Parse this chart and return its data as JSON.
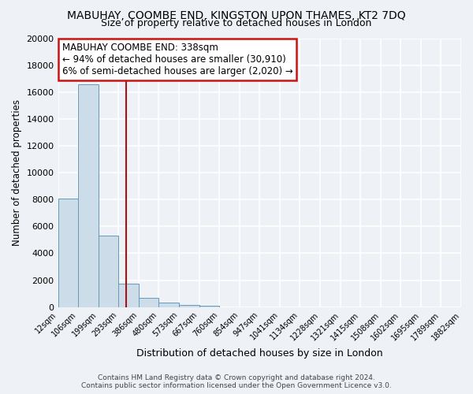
{
  "title": "MABUHAY, COOMBE END, KINGSTON UPON THAMES, KT2 7DQ",
  "subtitle": "Size of property relative to detached houses in London",
  "xlabel": "Distribution of detached houses by size in London",
  "ylabel": "Number of detached properties",
  "bar_values": [
    8100,
    16600,
    5300,
    1750,
    650,
    300,
    150,
    100,
    0,
    0,
    0,
    0,
    0,
    0,
    0,
    0,
    0,
    0,
    0,
    0
  ],
  "bin_labels": [
    "12sqm",
    "106sqm",
    "199sqm",
    "293sqm",
    "386sqm",
    "480sqm",
    "573sqm",
    "667sqm",
    "760sqm",
    "854sqm",
    "947sqm",
    "1041sqm",
    "1134sqm",
    "1228sqm",
    "1321sqm",
    "1415sqm",
    "1508sqm",
    "1602sqm",
    "1695sqm",
    "1789sqm",
    "1882sqm"
  ],
  "bar_color": "#ccdce8",
  "bar_edge_color": "#6699bb",
  "vline_color": "#aa1111",
  "vline_bin_index": 3.38,
  "annotation_title": "MABUHAY COOMBE END: 338sqm",
  "annotation_line1": "← 94% of detached houses are smaller (30,910)",
  "annotation_line2": "6% of semi-detached houses are larger (2,020) →",
  "annotation_box_facecolor": "#ffffff",
  "annotation_box_edgecolor": "#cc1111",
  "ylim": [
    0,
    20000
  ],
  "yticks": [
    0,
    2000,
    4000,
    6000,
    8000,
    10000,
    12000,
    14000,
    16000,
    18000,
    20000
  ],
  "footer1": "Contains HM Land Registry data © Crown copyright and database right 2024.",
  "footer2": "Contains public sector information licensed under the Open Government Licence v3.0.",
  "background_color": "#eef2f6",
  "grid_color": "#ffffff",
  "num_bins": 20
}
